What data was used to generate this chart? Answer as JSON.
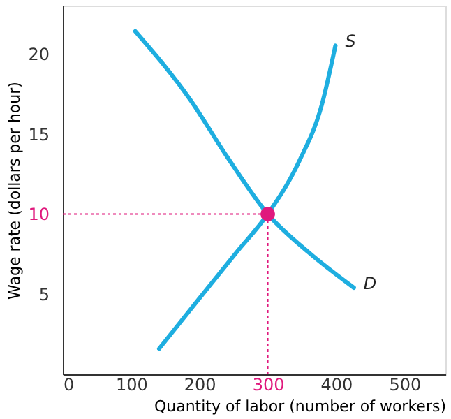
{
  "chart_data": {
    "type": "line",
    "xlabel": "Quantity of labor (number of workers)",
    "ylabel": "Wage rate (dollars per hour)",
    "series": [
      {
        "name": "S",
        "color": "#1eaee0",
        "x": [
          141,
          201,
          254,
          300,
          346,
          379,
          399
        ],
        "values": [
          1.6,
          4.8,
          7.6,
          10,
          13.3,
          16.8,
          20.5
        ]
      },
      {
        "name": "D",
        "color": "#1eaee0",
        "x": [
          106,
          187,
          240,
          300,
          360,
          426
        ],
        "values": [
          21.4,
          17.1,
          13.6,
          10,
          7.6,
          5.4
        ]
      },
      {
        "type": "scatter",
        "color": "#e0197d",
        "x": [
          300
        ],
        "values": [
          10
        ]
      }
    ],
    "ref_lines": [
      {
        "axis": "x",
        "value": 300,
        "color": "#e0197d",
        "line_style": "dotted"
      },
      {
        "axis": "y",
        "value": 10,
        "color": "#e0197d",
        "line_style": "dotted"
      }
    ],
    "xlim": [
      0,
      560
    ],
    "ylim": [
      0,
      23
    ],
    "xticks": [
      0,
      100,
      200,
      300,
      400,
      500
    ],
    "yticks": [
      5,
      10,
      15,
      20
    ],
    "grid": false,
    "line_style": "solid"
  }
}
